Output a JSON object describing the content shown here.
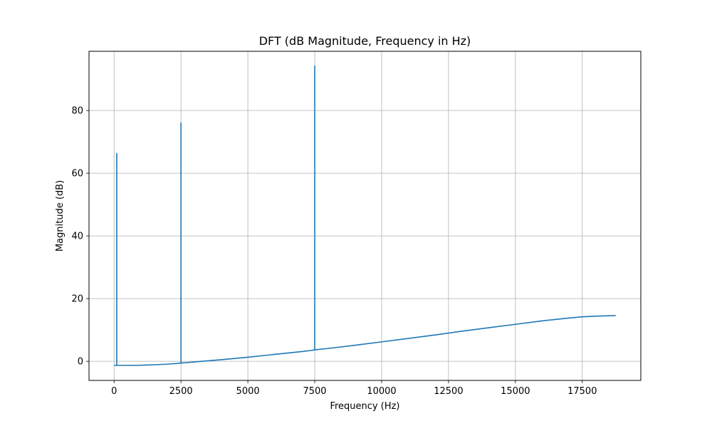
{
  "chart_data": {
    "type": "line",
    "title": "DFT (dB Magnitude, Frequency in Hz)",
    "xlabel": "Frequency (Hz)",
    "ylabel": "Magnitude (dB)",
    "xlim": [
      -937.5,
      19687.5
    ],
    "ylim": [
      -6.1,
      98.9
    ],
    "xticks": [
      0,
      2500,
      5000,
      7500,
      10000,
      12500,
      15000,
      17500
    ],
    "xtick_labels": [
      "0",
      "2500",
      "5000",
      "7500",
      "10000",
      "12500",
      "15000",
      "17500"
    ],
    "yticks": [
      0,
      20,
      40,
      60,
      80
    ],
    "ytick_labels": [
      "0",
      "20",
      "40",
      "60",
      "80"
    ],
    "grid": true,
    "legend": "none",
    "colors": {
      "line": "#1f77b4",
      "grid": "#b0b0b0",
      "axes": "#000000"
    },
    "series": [
      {
        "x": [
          0,
          50,
          100,
          100,
          100,
          150,
          500,
          1000,
          1500,
          2000,
          2400,
          2500,
          2500,
          2500,
          2600,
          3000,
          4000,
          5000,
          6000,
          7000,
          7400,
          7500,
          7500,
          7500,
          7600,
          8000,
          9000,
          10000,
          11000,
          12000,
          13000,
          14000,
          15000,
          16000,
          17000,
          17500,
          18000,
          18750
        ],
        "y": [
          -1.3,
          -1.3,
          -1.3,
          66.3,
          -1.3,
          -1.3,
          -1.3,
          -1.25,
          -1.1,
          -0.9,
          -0.65,
          -0.55,
          76.0,
          -0.55,
          -0.5,
          -0.2,
          0.5,
          1.3,
          2.2,
          3.1,
          3.5,
          3.65,
          94.2,
          3.65,
          3.75,
          4.1,
          5.1,
          6.2,
          7.3,
          8.4,
          9.6,
          10.7,
          11.8,
          12.9,
          13.8,
          14.2,
          14.4,
          14.6
        ]
      }
    ]
  }
}
